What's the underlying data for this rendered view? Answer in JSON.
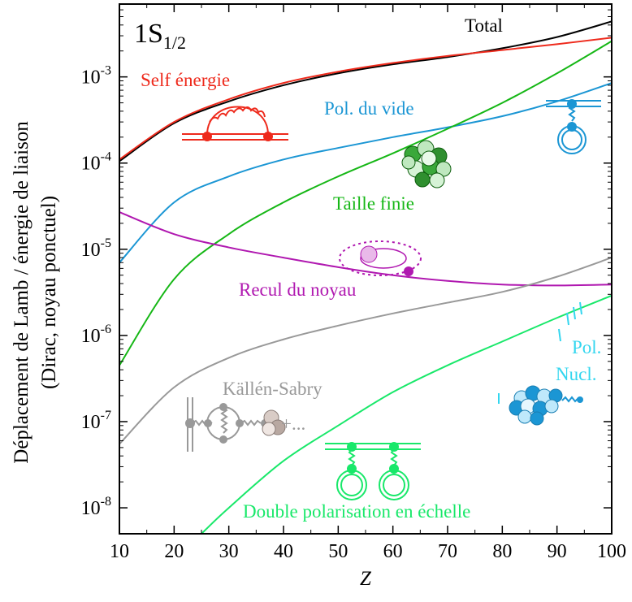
{
  "chart_data": {
    "type": "line",
    "title": "1S",
    "title_subscript": "1/2",
    "xlabel": "Z",
    "ylabel_lines": [
      "Déplacement de Lamb / énergie de liaison",
      "(Dirac, noyau ponctuel)"
    ],
    "x_scale": "linear",
    "y_scale": "log",
    "xlim": [
      10,
      100
    ],
    "ylim": [
      5e-09,
      0.007
    ],
    "x_ticks": [
      10,
      20,
      30,
      40,
      50,
      60,
      70,
      80,
      90,
      100
    ],
    "x_tick_labels": [
      "10",
      "20",
      "30",
      "40",
      "50",
      "60",
      "70",
      "80",
      "90",
      "100"
    ],
    "y_ticks": [
      1e-08,
      1e-07,
      1e-06,
      1e-05,
      0.0001,
      0.001
    ],
    "y_tick_labels": [
      {
        "base": "10",
        "exp": "-8"
      },
      {
        "base": "10",
        "exp": "-7"
      },
      {
        "base": "10",
        "exp": "-6"
      },
      {
        "base": "10",
        "exp": "-5"
      },
      {
        "base": "10",
        "exp": "-4"
      },
      {
        "base": "10",
        "exp": "-3"
      }
    ],
    "grid": false,
    "series": [
      {
        "name": "Total",
        "color": "#000000",
        "x": [
          10,
          20,
          30,
          40,
          50,
          60,
          70,
          80,
          90,
          100
        ],
        "y": [
          0.000105,
          0.00029,
          0.00052,
          0.0008,
          0.0011,
          0.0014,
          0.0017,
          0.00215,
          0.0029,
          0.0044
        ]
      },
      {
        "name": "Self énergie",
        "color": "#ee2a1c",
        "x": [
          10,
          20,
          30,
          40,
          50,
          60,
          70,
          80,
          90,
          100
        ],
        "y": [
          0.00011,
          0.0003,
          0.00055,
          0.00085,
          0.00115,
          0.00145,
          0.00175,
          0.00205,
          0.0024,
          0.00285
        ]
      },
      {
        "name": "Pol. du vide",
        "color": "#1b96d4",
        "x": [
          10,
          20,
          30,
          40,
          50,
          60,
          70,
          80,
          90,
          100
        ],
        "y": [
          7e-06,
          3.5e-05,
          7e-05,
          0.00011,
          0.00015,
          0.0002,
          0.00026,
          0.00035,
          0.00052,
          0.00085
        ]
      },
      {
        "name": "Taille finie",
        "color": "#16b716",
        "x": [
          10,
          20,
          30,
          40,
          50,
          60,
          70,
          80,
          90,
          100
        ],
        "y": [
          4.5e-07,
          4.5e-06,
          1.5e-05,
          3.5e-05,
          7e-05,
          0.00013,
          0.00025,
          0.0005,
          0.0011,
          0.0026
        ]
      },
      {
        "name": "Recul du noyau",
        "color": "#b018b0",
        "x": [
          10,
          20,
          30,
          40,
          50,
          60,
          70,
          80,
          90,
          100
        ],
        "y": [
          2.7e-05,
          1.5e-05,
          1.05e-05,
          8e-06,
          6.2e-06,
          5e-06,
          4.3e-06,
          3.9e-06,
          3.8e-06,
          3.9e-06
        ]
      },
      {
        "name": "Källén-Sabry",
        "color": "#999999",
        "x": [
          10,
          20,
          30,
          40,
          50,
          60,
          70,
          80,
          90,
          100
        ],
        "y": [
          5.5e-08,
          2.5e-07,
          5.5e-07,
          9e-07,
          1.3e-06,
          1.8e-06,
          2.4e-06,
          3.2e-06,
          4.8e-06,
          8e-06
        ]
      },
      {
        "name": "Double polarisation en échelle",
        "color": "#19e86a",
        "x": [
          25,
          30,
          40,
          50,
          60,
          70,
          80,
          90,
          100
        ],
        "y": [
          5e-09,
          1e-08,
          3.5e-08,
          9e-08,
          2.2e-07,
          4.5e-07,
          8.5e-07,
          1.6e-06,
          2.9e-06
        ]
      }
    ],
    "annotations": [
      "Pol.",
      "Nucl.",
      "+..."
    ]
  }
}
